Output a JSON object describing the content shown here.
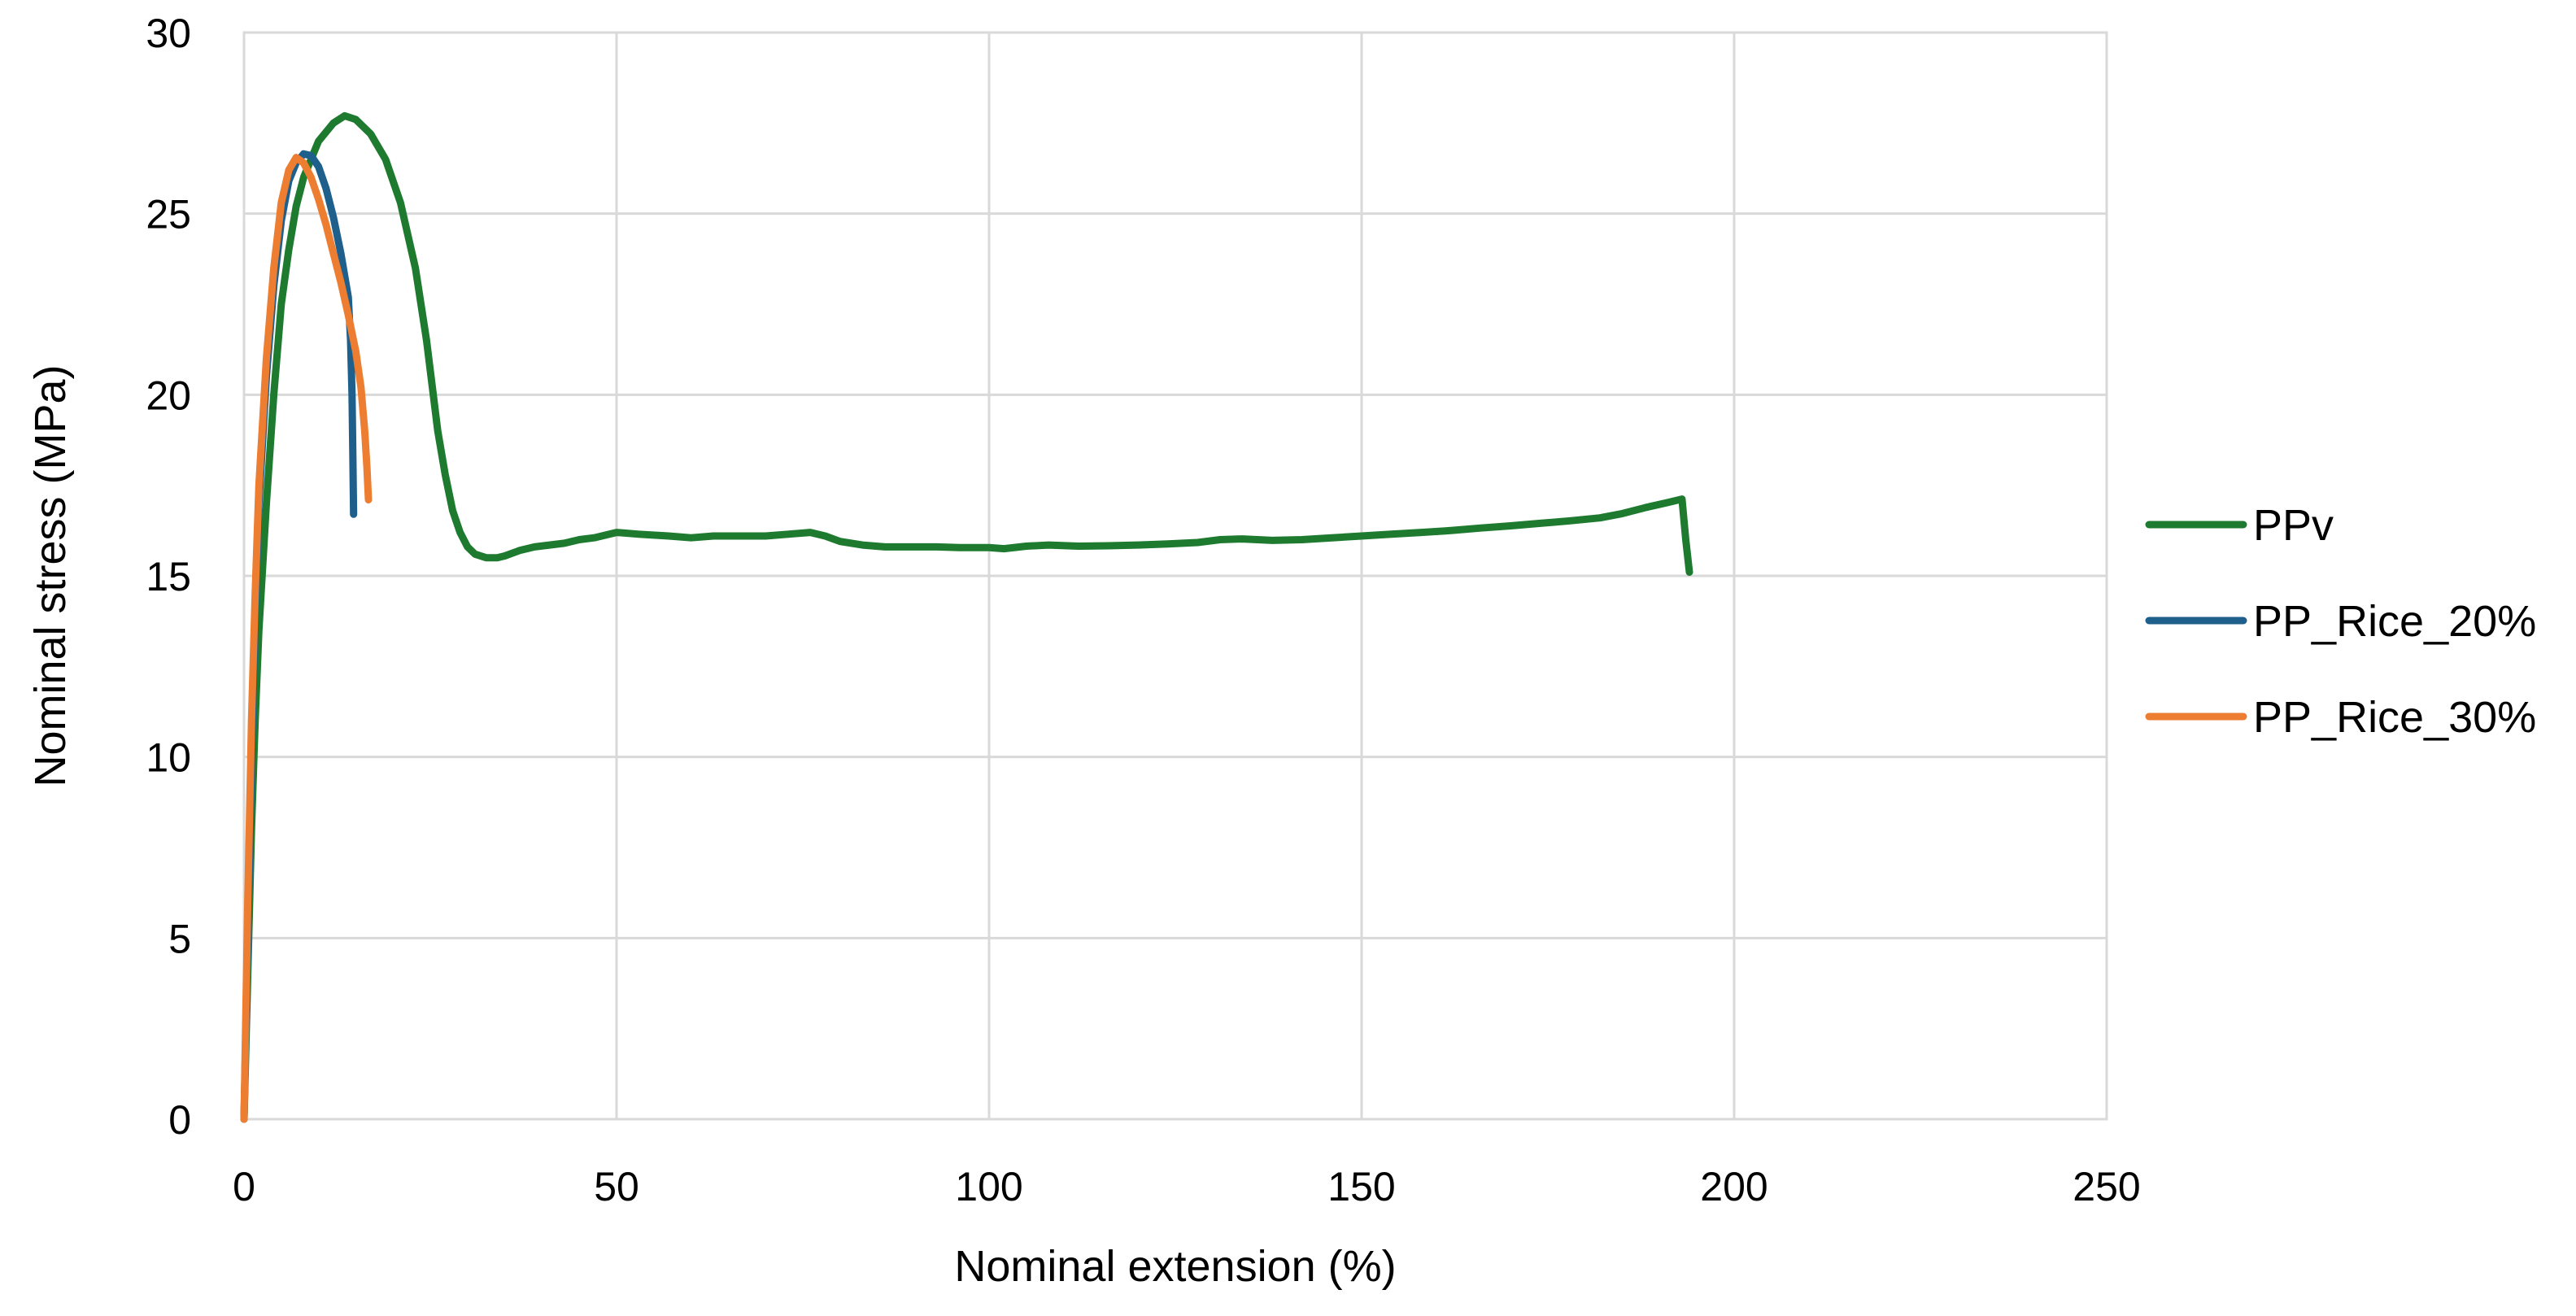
{
  "chart_data": {
    "type": "line",
    "title": "",
    "xlabel": "Nominal extension (%)",
    "ylabel": "Nominal stress (MPa)",
    "xlim": [
      0,
      250
    ],
    "ylim": [
      0,
      30
    ],
    "x_ticks": [
      0,
      50,
      100,
      150,
      200,
      250
    ],
    "y_ticks": [
      0,
      5,
      10,
      15,
      20,
      25,
      30
    ],
    "grid": true,
    "legend_position": "right",
    "series": [
      {
        "name": "PPv",
        "color": "#1e7a2e",
        "points": [
          [
            0,
            0
          ],
          [
            0.5,
            4
          ],
          [
            1,
            8
          ],
          [
            1.5,
            11
          ],
          [
            2,
            13.5
          ],
          [
            3,
            17
          ],
          [
            4,
            20
          ],
          [
            5,
            22.5
          ],
          [
            6,
            24
          ],
          [
            7,
            25.2
          ],
          [
            8,
            26
          ],
          [
            10,
            27
          ],
          [
            12,
            27.5
          ],
          [
            13.5,
            27.7
          ],
          [
            15,
            27.6
          ],
          [
            17,
            27.2
          ],
          [
            19,
            26.5
          ],
          [
            21,
            25.3
          ],
          [
            23,
            23.5
          ],
          [
            24.5,
            21.5
          ],
          [
            26,
            19
          ],
          [
            27,
            17.8
          ],
          [
            28,
            16.8
          ],
          [
            29,
            16.2
          ],
          [
            30,
            15.8
          ],
          [
            31,
            15.6
          ],
          [
            32.5,
            15.5
          ],
          [
            34,
            15.5
          ],
          [
            35,
            15.55
          ],
          [
            37,
            15.7
          ],
          [
            39,
            15.8
          ],
          [
            41,
            15.85
          ],
          [
            43,
            15.9
          ],
          [
            45,
            16
          ],
          [
            47,
            16.05
          ],
          [
            50,
            16.2
          ],
          [
            53,
            16.15
          ],
          [
            57,
            16.1
          ],
          [
            60,
            16.05
          ],
          [
            63,
            16.1
          ],
          [
            66,
            16.1
          ],
          [
            70,
            16.1
          ],
          [
            73,
            16.15
          ],
          [
            76,
            16.2
          ],
          [
            78,
            16.1
          ],
          [
            80,
            15.95
          ],
          [
            83,
            15.85
          ],
          [
            86,
            15.8
          ],
          [
            90,
            15.8
          ],
          [
            93,
            15.8
          ],
          [
            96,
            15.78
          ],
          [
            100,
            15.78
          ],
          [
            102,
            15.75
          ],
          [
            105,
            15.82
          ],
          [
            108,
            15.85
          ],
          [
            112,
            15.82
          ],
          [
            116,
            15.83
          ],
          [
            120,
            15.85
          ],
          [
            124,
            15.88
          ],
          [
            128,
            15.92
          ],
          [
            131,
            16
          ],
          [
            134,
            16.02
          ],
          [
            138,
            15.98
          ],
          [
            142,
            16
          ],
          [
            146,
            16.05
          ],
          [
            150,
            16.1
          ],
          [
            154,
            16.15
          ],
          [
            158,
            16.2
          ],
          [
            162,
            16.25
          ],
          [
            166,
            16.32
          ],
          [
            170,
            16.38
          ],
          [
            174,
            16.45
          ],
          [
            178,
            16.52
          ],
          [
            182,
            16.6
          ],
          [
            185,
            16.72
          ],
          [
            188,
            16.88
          ],
          [
            191,
            17.02
          ],
          [
            193,
            17.12
          ],
          [
            193.5,
            16
          ],
          [
            194,
            15.1
          ]
        ]
      },
      {
        "name": "PP_Rice_20%",
        "color": "#1f5f8b",
        "points": [
          [
            0,
            0
          ],
          [
            0.5,
            5
          ],
          [
            1,
            10
          ],
          [
            1.5,
            14
          ],
          [
            2,
            17
          ],
          [
            3,
            20.5
          ],
          [
            4,
            23
          ],
          [
            5,
            24.8
          ],
          [
            6,
            25.9
          ],
          [
            7,
            26.4
          ],
          [
            8,
            26.65
          ],
          [
            9,
            26.6
          ],
          [
            10,
            26.3
          ],
          [
            11,
            25.7
          ],
          [
            12,
            24.9
          ],
          [
            13,
            23.9
          ],
          [
            14,
            22.7
          ],
          [
            14.3,
            21.5
          ],
          [
            14.5,
            20
          ],
          [
            14.6,
            18.5
          ],
          [
            14.7,
            16.7
          ]
        ]
      },
      {
        "name": "PP_Rice_30%",
        "color": "#ed7d31",
        "points": [
          [
            0,
            0
          ],
          [
            0.5,
            6
          ],
          [
            1,
            11
          ],
          [
            1.5,
            14.5
          ],
          [
            2,
            17.5
          ],
          [
            3,
            21
          ],
          [
            4,
            23.5
          ],
          [
            5,
            25.3
          ],
          [
            6,
            26.2
          ],
          [
            7,
            26.55
          ],
          [
            8,
            26.4
          ],
          [
            9,
            26
          ],
          [
            10,
            25.4
          ],
          [
            11,
            24.7
          ],
          [
            12,
            23.9
          ],
          [
            13,
            23.1
          ],
          [
            14,
            22.2
          ],
          [
            15,
            21.2
          ],
          [
            15.7,
            20.2
          ],
          [
            16.2,
            19
          ],
          [
            16.5,
            18
          ],
          [
            16.7,
            17.1
          ]
        ]
      }
    ]
  }
}
